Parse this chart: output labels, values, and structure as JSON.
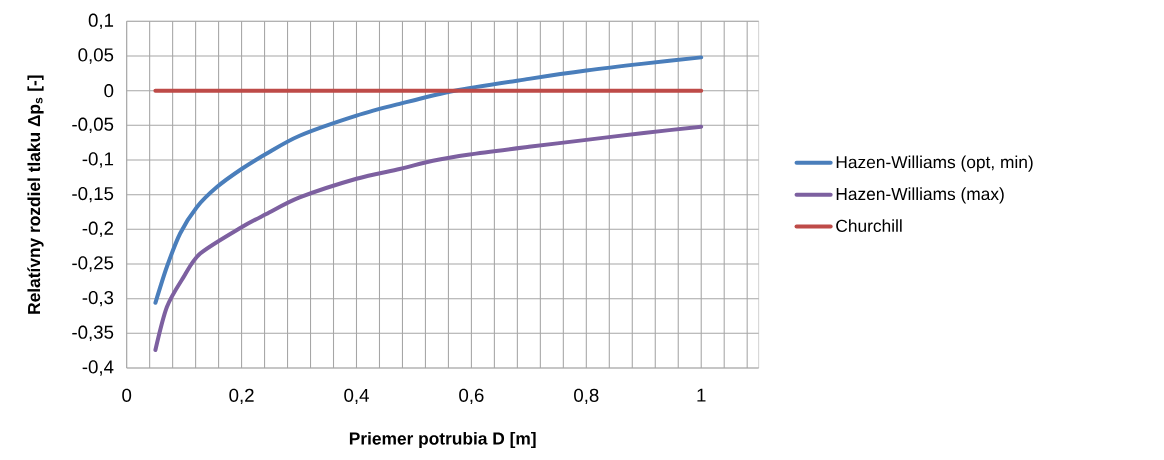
{
  "chart_data": {
    "type": "line",
    "xlabel": "Priemer potrubia D [m]",
    "ylabel": "Relatívny rozdiel tlaku Δp$_{s}$ [-]",
    "series": [
      {
        "name": "Hazen-Williams (opt, min)",
        "color": "#4a7ebb",
        "x": [
          0.05,
          0.07,
          0.093,
          0.122,
          0.157,
          0.2,
          0.243,
          0.301,
          0.4,
          0.475,
          0.571,
          0.7,
          0.8,
          0.9,
          1
        ],
        "values": [
          -0.306,
          -0.254,
          -0.206,
          -0.168,
          -0.139,
          -0.113,
          -0.091,
          -0.065,
          -0.036,
          -0.019,
          0.0,
          0.017,
          0.029,
          0.039,
          0.048
        ]
      },
      {
        "name": "Hazen-Williams (max)",
        "color": "#7d60a0",
        "x": [
          0.05,
          0.07,
          0.099,
          0.128,
          0.2,
          0.243,
          0.301,
          0.4,
          0.475,
          0.533,
          0.597,
          0.7,
          0.8,
          0.9,
          1
        ],
        "values": [
          -0.374,
          -0.312,
          -0.269,
          -0.235,
          -0.197,
          -0.178,
          -0.154,
          -0.127,
          -0.113,
          -0.101,
          -0.092,
          -0.081,
          -0.071,
          -0.061,
          -0.052
        ]
      },
      {
        "name": "Churchill",
        "color": "#be4b48",
        "x": [
          0.05,
          1
        ],
        "values": [
          0,
          0
        ]
      }
    ],
    "xlim": [
      0,
      1.1
    ],
    "ylim": [
      -0.4,
      0.1
    ],
    "xticks": [
      0,
      {
        "value": 0.04,
        "label": null
      },
      {
        "value": 0.08,
        "label": null
      },
      {
        "value": 0.12,
        "label": null
      },
      {
        "value": 0.16,
        "label": null
      },
      {
        "value": 0.2,
        "label": "0,2"
      },
      {
        "value": 0.24,
        "label": null
      },
      {
        "value": 0.28,
        "label": null
      },
      {
        "value": 0.32,
        "label": null
      },
      {
        "value": 0.36,
        "label": null
      },
      {
        "value": 0.4,
        "label": "0,4"
      },
      {
        "value": 0.44,
        "label": null
      },
      {
        "value": 0.48,
        "label": null
      },
      {
        "value": 0.52,
        "label": null
      },
      {
        "value": 0.56,
        "label": null
      },
      {
        "value": 0.6,
        "label": "0,6"
      },
      {
        "value": 0.64,
        "label": null
      },
      {
        "value": 0.68,
        "label": null
      },
      {
        "value": 0.72,
        "label": null
      },
      {
        "value": 0.76,
        "label": null
      },
      {
        "value": 0.8,
        "label": "0,8"
      },
      {
        "value": 0.84,
        "label": null
      },
      {
        "value": 0.88,
        "label": null
      },
      {
        "value": 0.92,
        "label": null
      },
      {
        "value": 0.96,
        "label": null
      },
      1,
      {
        "value": 1.04,
        "label": null
      },
      {
        "value": 1.08,
        "label": null
      }
    ],
    "yticks": [
      {
        "value": -0.4,
        "label": "-0,4"
      },
      {
        "value": -0.35,
        "label": "-0,35"
      },
      {
        "value": -0.3,
        "label": "-0,3"
      },
      {
        "value": -0.25,
        "label": "-0,25"
      },
      {
        "value": -0.2,
        "label": "-0,2"
      },
      {
        "value": -0.15,
        "label": "-0,15"
      },
      {
        "value": -0.1,
        "label": "-0,1"
      },
      {
        "value": -0.05,
        "label": "-0,05"
      },
      0,
      {
        "value": 0.05,
        "label": "0,05"
      },
      {
        "value": 0.1,
        "label": "0,1"
      }
    ],
    "grid": true,
    "legend": "right"
  }
}
